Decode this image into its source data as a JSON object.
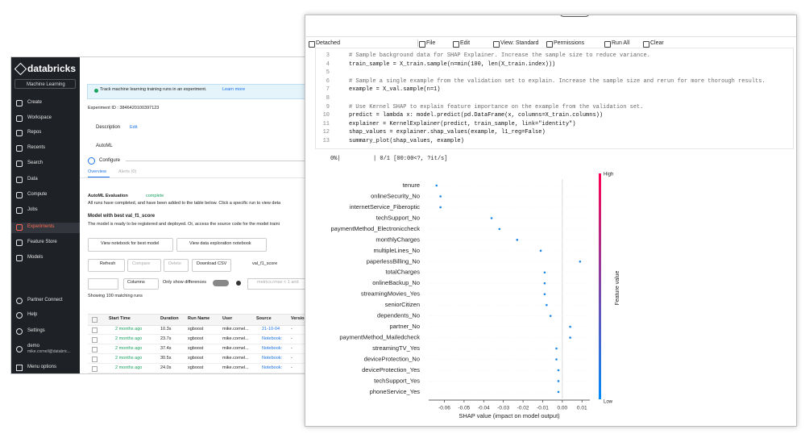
{
  "sidebar": {
    "brand": "databricks",
    "persona": "Machine Learning",
    "items": [
      "Create",
      "Workspace",
      "Repos",
      "Recents",
      "Search",
      "Data",
      "Compute",
      "Jobs",
      "Experiments",
      "Feature Store",
      "Models"
    ],
    "bottom": [
      "Partner Connect",
      "Help",
      "Settings"
    ],
    "user": {
      "name": "demo",
      "email": "mike.cornell@databric..."
    },
    "menu": "Menu options"
  },
  "experiment": {
    "banner": "Track machine learning training runs in an experiment.",
    "banner_link": "Learn more",
    "id": "Experiment ID : 3846420100397123",
    "description": "Description",
    "edit": "Edit",
    "automl": "AutoML",
    "configure": "Configure",
    "tabs": [
      "Overview",
      "Alerts (0)"
    ],
    "evaluation": {
      "title": "AutoML Evaluation",
      "status": "complete",
      "text": "All runs have completed, and have been added to the table below. Click a specific run to view deta"
    },
    "best": {
      "title": "Model with best val_f1_score",
      "text": "The model is ready to be registered and deployed. Or, access the source code for the model traini",
      "buttons": [
        "View notebook for best model",
        "View data exploration notebook"
      ]
    },
    "toolbar": [
      "Refresh",
      "Compare",
      "Delete",
      "Download CSV",
      "val_f1_score"
    ],
    "columns": "Columns",
    "diff": "Only show differences",
    "search": "metrics.rmse < 1 and",
    "count": "Showing 100 matching runs",
    "table": {
      "headers": [
        "Start Time",
        "Duration",
        "Run Name",
        "User",
        "Source",
        "Versio"
      ],
      "rows": [
        [
          "2 months ago",
          "10.3s",
          "xgboost",
          "mike.cornel...",
          "21-10-04",
          "-"
        ],
        [
          "2 months ago",
          "23.7s",
          "xgboost",
          "mike.cornel...",
          "Notebook:",
          "-"
        ],
        [
          "2 months ago",
          "37.4s",
          "xgboost",
          "mike.cornel...",
          "Notebook:",
          "-"
        ],
        [
          "2 months ago",
          "30.5s",
          "xgboost",
          "mike.cornel...",
          "Notebook:",
          "-"
        ],
        [
          "2 months ago",
          "24.0s",
          "xgboost",
          "mike.cornel...",
          "Notebook:",
          "-"
        ]
      ]
    }
  },
  "notebook": {
    "title": "21-10-04-18:53-XGBoost-e5a1504199ea613893fd549e76463aa6",
    "language": "Python",
    "toolbar": [
      "Detached",
      "File",
      "Edit",
      "View: Standard",
      "Permissions",
      "Run All",
      "Clear"
    ],
    "code": [
      {
        "n": 3,
        "code": "# Sample background data for SHAP Explainer. Increase the sample size to reduce variance."
      },
      {
        "n": 4,
        "code": "train_sample = X_train.sample(n=min(100, len(X_train.index)))"
      },
      {
        "n": 5
      },
      {
        "n": 6,
        "code": "# Sample a single example from the validation set to explain. Increase the sample size and rerun for more thorough results."
      },
      {
        "n": 7,
        "code": "example = X_val.sample(n=1)"
      },
      {
        "n": 8
      },
      {
        "n": 9,
        "code": "# Use Kernel SHAP to explain feature importance on the example from the validation set."
      },
      {
        "n": 10,
        "code": "predict = lambda x: model.predict(pd.DataFrame(x, columns=X_train.columns))"
      },
      {
        "n": 11,
        "code": "explainer = KernelExplainer(predict, train_sample, link=\"identity\")"
      },
      {
        "n": 12,
        "code": "shap_values = explainer.shap_values(example, l1_reg=False)"
      },
      {
        "n": 13,
        "code": "summary_plot(shap_values, example)"
      }
    ],
    "progress": {
      "percent": "0%|",
      "status": "| 0/1 [00:00<?, ?it/s]"
    }
  },
  "chart_data": {
    "type": "scatter",
    "categories": [
      "tenure",
      "onlineSecurity_No",
      "internetService_Fiberoptic",
      "techSupport_No",
      "paymentMethod_Electroniccheck",
      "monthlyCharges",
      "multipleLines_No",
      "paperlessBilling_No",
      "totalCharges",
      "onlineBackup_No",
      "streamingMovies_Yes",
      "seniorCitizen",
      "dependents_No",
      "partner_No",
      "paymentMethod_Mailedcheck",
      "streamingTV_Yes",
      "deviceProtection_No",
      "deviceProtection_Yes",
      "techSupport_Yes",
      "phoneService_Yes"
    ],
    "values": [
      -0.064,
      -0.062,
      -0.062,
      -0.036,
      -0.032,
      -0.023,
      -0.011,
      0.009,
      -0.009,
      -0.009,
      -0.009,
      -0.008,
      -0.006,
      0.004,
      0.004,
      -0.003,
      -0.003,
      -0.002,
      -0.002,
      -0.002
    ],
    "color": "#1e88e5",
    "xlim": [
      -0.068,
      0.014
    ],
    "xticks": [
      -0.06,
      -0.05,
      -0.04,
      -0.03,
      -0.02,
      -0.01,
      {
        "value": 0,
        "label": "0.00"
      },
      0.01
    ],
    "xlabel": "SHAP value (impact on model output)",
    "colorbar": {
      "high": "High",
      "low": "Low",
      "label": "Feature value",
      "colors": [
        "#ff0052",
        "#008bfb"
      ]
    }
  }
}
